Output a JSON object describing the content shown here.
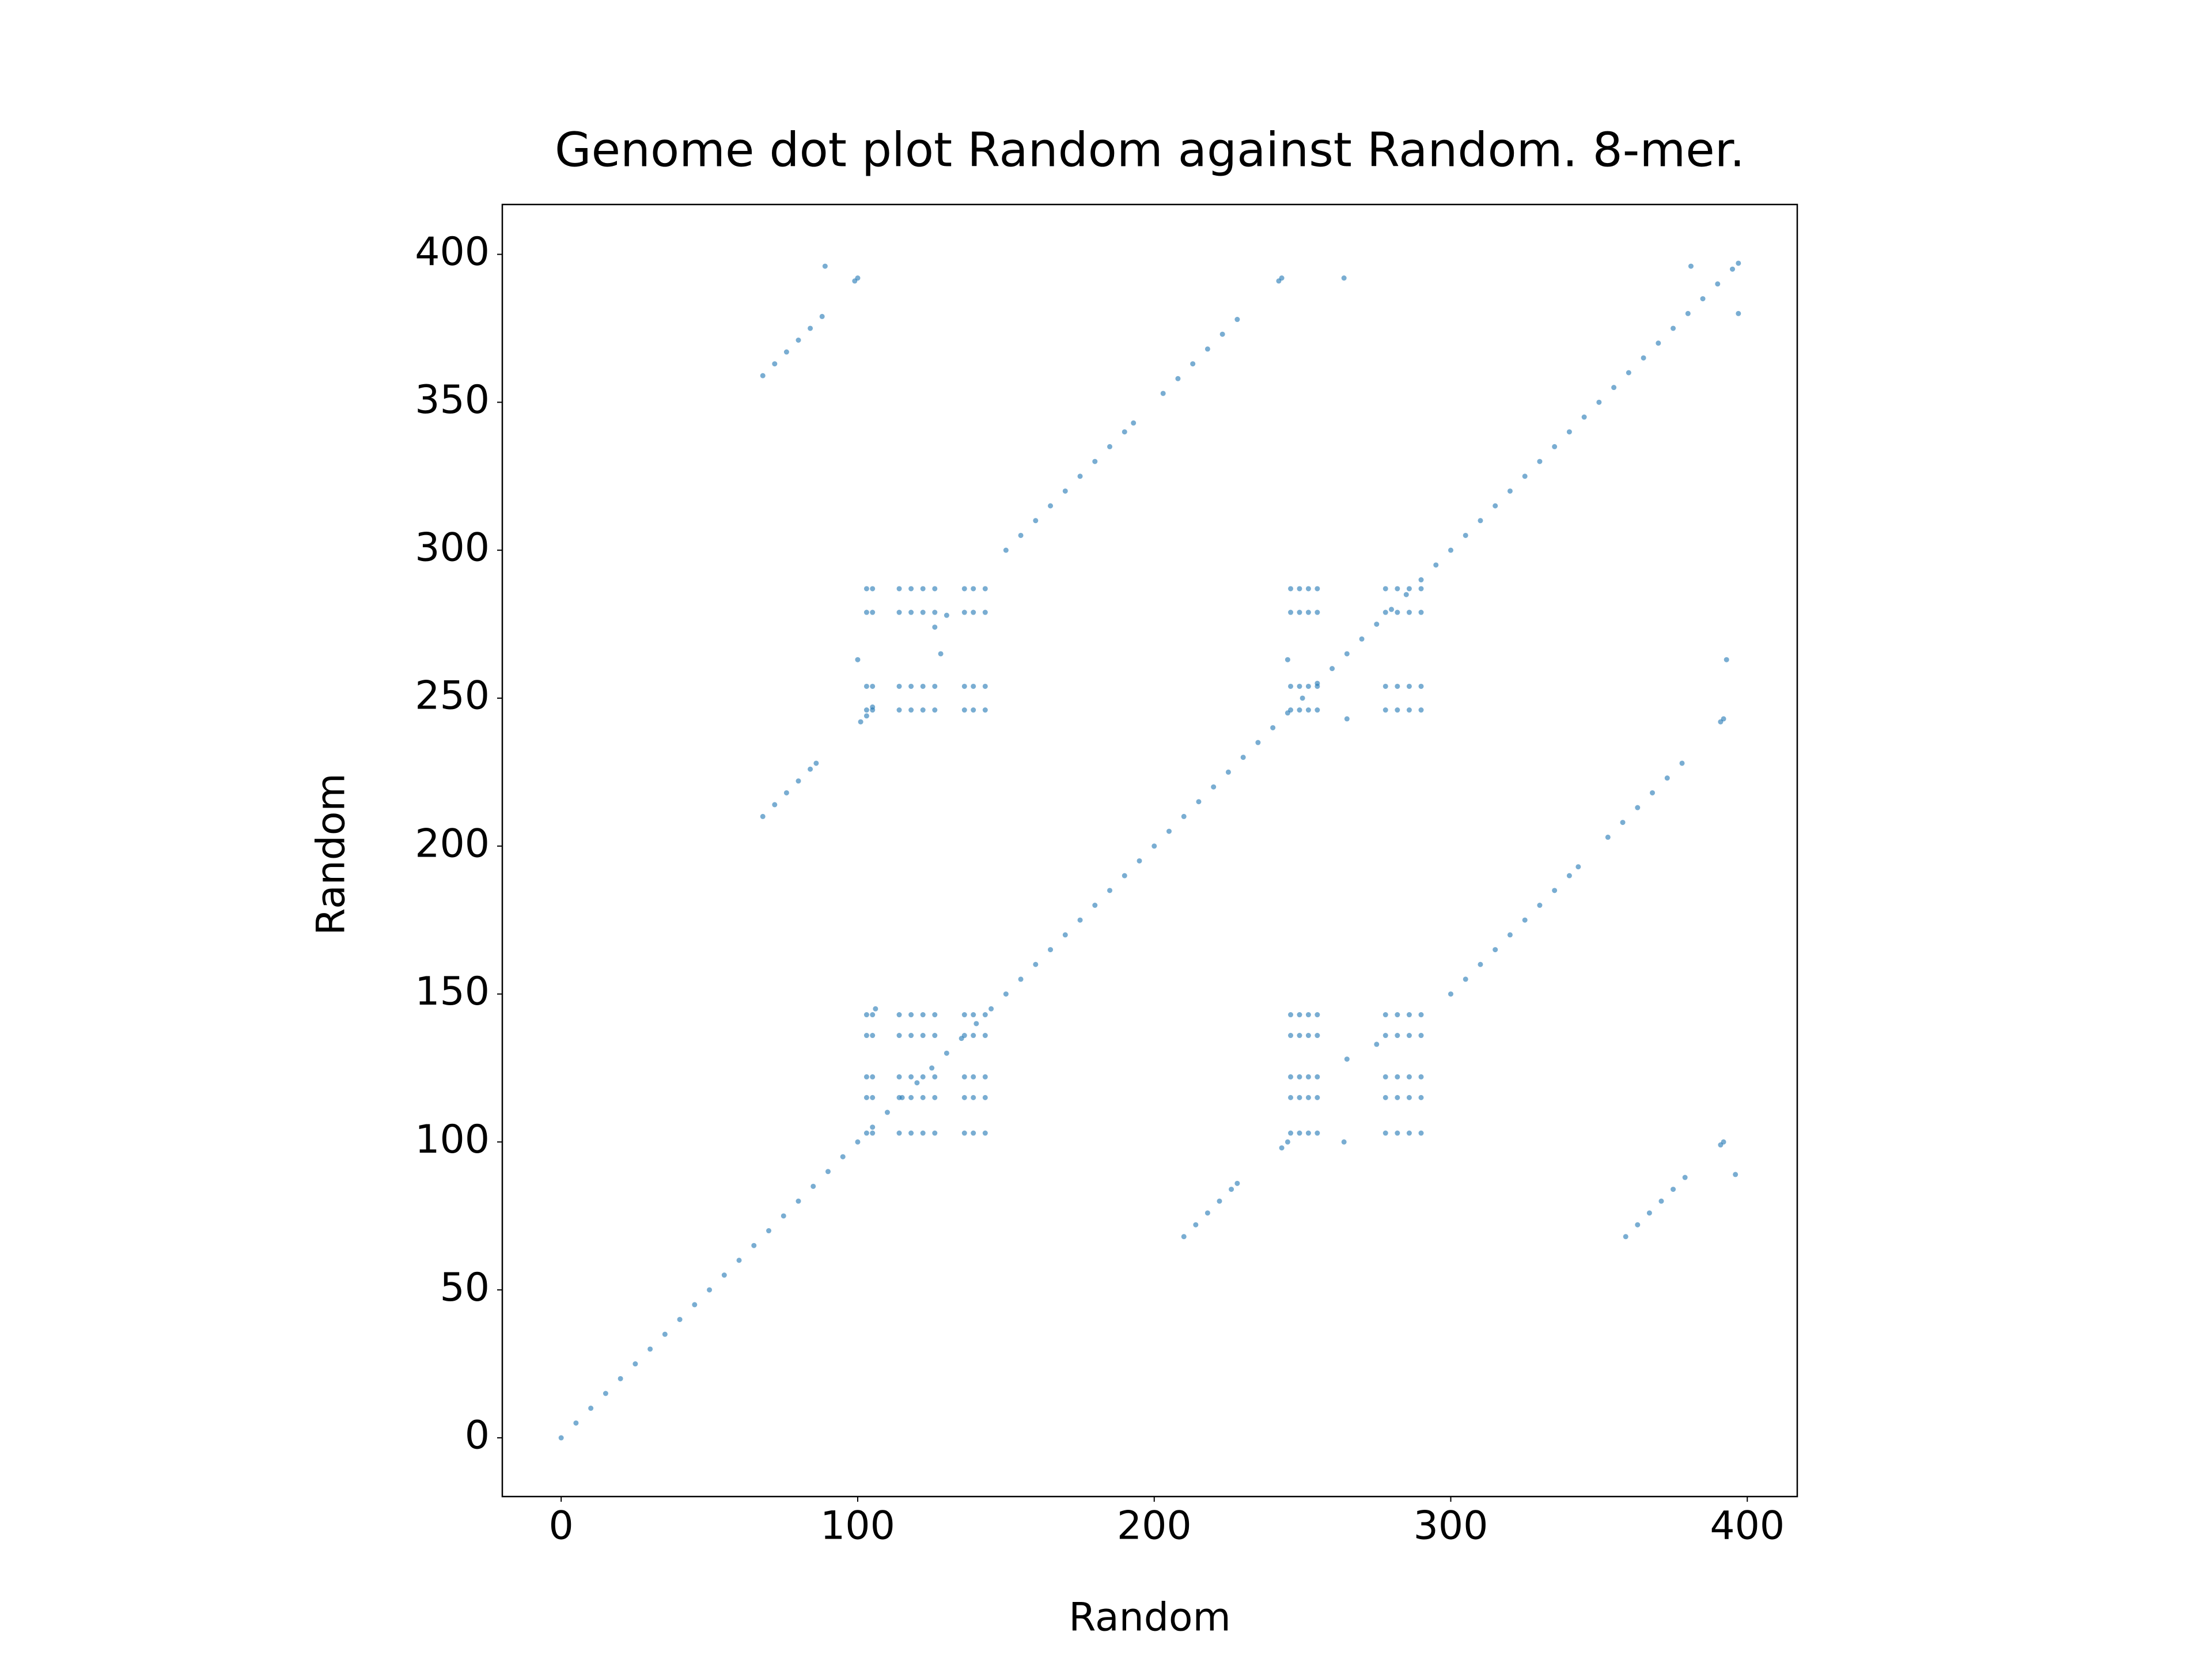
{
  "chart_data": {
    "type": "scatter",
    "title": "Genome dot plot Random against Random. 8-mer.",
    "xlabel": "Random",
    "ylabel": "Random",
    "color": "#1f77b4",
    "x": [
      0,
      5,
      10,
      15,
      20,
      25,
      30,
      35,
      40,
      45,
      50,
      55,
      60,
      65,
      70,
      75,
      80,
      85,
      90,
      95,
      100,
      105,
      110,
      115,
      120,
      125,
      130,
      135,
      140,
      145,
      150,
      155,
      160,
      165,
      170,
      175,
      180,
      185,
      190,
      195,
      200,
      205,
      210,
      215,
      220,
      225,
      230,
      235,
      240,
      245,
      250,
      255,
      260,
      265,
      270,
      275,
      280,
      285,
      290,
      295,
      300,
      305,
      310,
      315,
      320,
      325,
      330,
      335,
      340,
      345,
      350,
      355,
      360,
      365,
      370,
      375,
      380,
      385,
      390,
      395,
      397,
      103,
      105,
      114,
      118,
      122,
      126,
      136,
      139,
      143,
      246,
      249,
      252,
      255,
      278,
      282,
      286,
      290,
      103,
      105,
      114,
      118,
      122,
      126,
      136,
      139,
      143,
      246,
      249,
      252,
      255,
      278,
      282,
      286,
      290,
      103,
      105,
      114,
      118,
      122,
      126,
      136,
      139,
      143,
      246,
      249,
      252,
      255,
      278,
      282,
      286,
      290,
      103,
      105,
      114,
      118,
      122,
      126,
      136,
      139,
      143,
      246,
      249,
      252,
      255,
      278,
      282,
      286,
      290,
      103,
      105,
      114,
      118,
      122,
      126,
      136,
      139,
      143,
      246,
      249,
      252,
      255,
      278,
      282,
      286,
      290,
      103,
      105,
      114,
      118,
      122,
      126,
      136,
      139,
      143,
      246,
      249,
      252,
      255,
      278,
      282,
      286,
      290,
      103,
      105,
      114,
      118,
      122,
      126,
      136,
      139,
      143,
      246,
      249,
      252,
      255,
      278,
      282,
      286,
      290,
      103,
      105,
      114,
      118,
      122,
      126,
      136,
      139,
      143,
      246,
      249,
      252,
      255,
      278,
      282,
      286,
      290,
      103,
      105,
      114,
      118,
      122,
      126,
      136,
      139,
      143,
      246,
      249,
      252,
      255,
      278,
      282,
      286,
      290,
      68,
      72,
      76,
      80,
      84,
      88,
      68,
      72,
      76,
      80,
      84,
      86,
      150,
      155,
      160,
      165,
      170,
      175,
      180,
      185,
      190,
      193,
      203,
      208,
      213,
      218,
      223,
      228,
      359,
      363,
      367,
      371,
      375,
      379,
      210,
      214,
      218,
      222,
      226,
      228,
      300,
      305,
      310,
      315,
      320,
      325,
      330,
      335,
      340,
      343,
      353,
      358,
      363,
      368,
      373,
      378,
      89,
      99,
      100,
      101,
      103,
      105,
      100,
      128,
      126,
      130,
      242,
      243,
      264,
      381,
      397,
      245,
      265,
      393,
      391,
      392,
      396,
      391,
      392,
      264,
      265,
      243,
      245,
      106,
      275
    ],
    "y": [
      0,
      5,
      10,
      15,
      20,
      25,
      30,
      35,
      40,
      45,
      50,
      55,
      60,
      65,
      70,
      75,
      80,
      85,
      90,
      95,
      100,
      105,
      110,
      115,
      120,
      125,
      130,
      135,
      140,
      145,
      150,
      155,
      160,
      165,
      170,
      175,
      180,
      185,
      190,
      195,
      200,
      205,
      210,
      215,
      220,
      225,
      230,
      235,
      240,
      245,
      250,
      255,
      260,
      265,
      270,
      275,
      280,
      285,
      290,
      295,
      300,
      305,
      310,
      315,
      320,
      325,
      330,
      335,
      340,
      345,
      350,
      355,
      360,
      365,
      370,
      375,
      380,
      385,
      390,
      395,
      397,
      103,
      103,
      103,
      103,
      103,
      103,
      103,
      103,
      103,
      103,
      103,
      103,
      103,
      103,
      103,
      103,
      103,
      115,
      115,
      115,
      115,
      115,
      115,
      115,
      115,
      115,
      115,
      115,
      115,
      115,
      115,
      115,
      115,
      115,
      122,
      122,
      122,
      122,
      122,
      122,
      122,
      122,
      122,
      122,
      122,
      122,
      122,
      122,
      122,
      122,
      122,
      136,
      136,
      136,
      136,
      136,
      136,
      136,
      136,
      136,
      136,
      136,
      136,
      136,
      136,
      136,
      136,
      136,
      143,
      143,
      143,
      143,
      143,
      143,
      143,
      143,
      143,
      143,
      143,
      143,
      143,
      143,
      143,
      143,
      143,
      246,
      246,
      246,
      246,
      246,
      246,
      246,
      246,
      246,
      246,
      246,
      246,
      246,
      246,
      246,
      246,
      246,
      254,
      254,
      254,
      254,
      254,
      254,
      254,
      254,
      254,
      254,
      254,
      254,
      254,
      254,
      254,
      254,
      254,
      279,
      279,
      279,
      279,
      279,
      279,
      279,
      279,
      279,
      279,
      279,
      279,
      279,
      279,
      279,
      279,
      279,
      287,
      287,
      287,
      287,
      287,
      287,
      287,
      287,
      287,
      287,
      287,
      287,
      287,
      287,
      287,
      287,
      287,
      359,
      363,
      367,
      371,
      375,
      379,
      210,
      214,
      218,
      222,
      226,
      228,
      300,
      305,
      310,
      315,
      320,
      325,
      330,
      335,
      340,
      343,
      353,
      358,
      363,
      368,
      373,
      378,
      68,
      72,
      76,
      80,
      84,
      88,
      68,
      72,
      76,
      80,
      84,
      86,
      150,
      155,
      160,
      165,
      170,
      175,
      180,
      185,
      190,
      193,
      203,
      208,
      213,
      218,
      223,
      228,
      396,
      391,
      392,
      242,
      244,
      247,
      263,
      265,
      274,
      278,
      391,
      392,
      392,
      396,
      380,
      263,
      243,
      263,
      242,
      243,
      89,
      99,
      100,
      100,
      128,
      98,
      100,
      145,
      133
    ],
    "xlim": [
      -19.85,
      416.85
    ],
    "ylim": [
      -19.85,
      416.85
    ],
    "xticks": [
      0,
      100,
      200,
      300,
      400
    ],
    "yticks": [
      0,
      50,
      100,
      150,
      200,
      250,
      300,
      350,
      400
    ]
  }
}
